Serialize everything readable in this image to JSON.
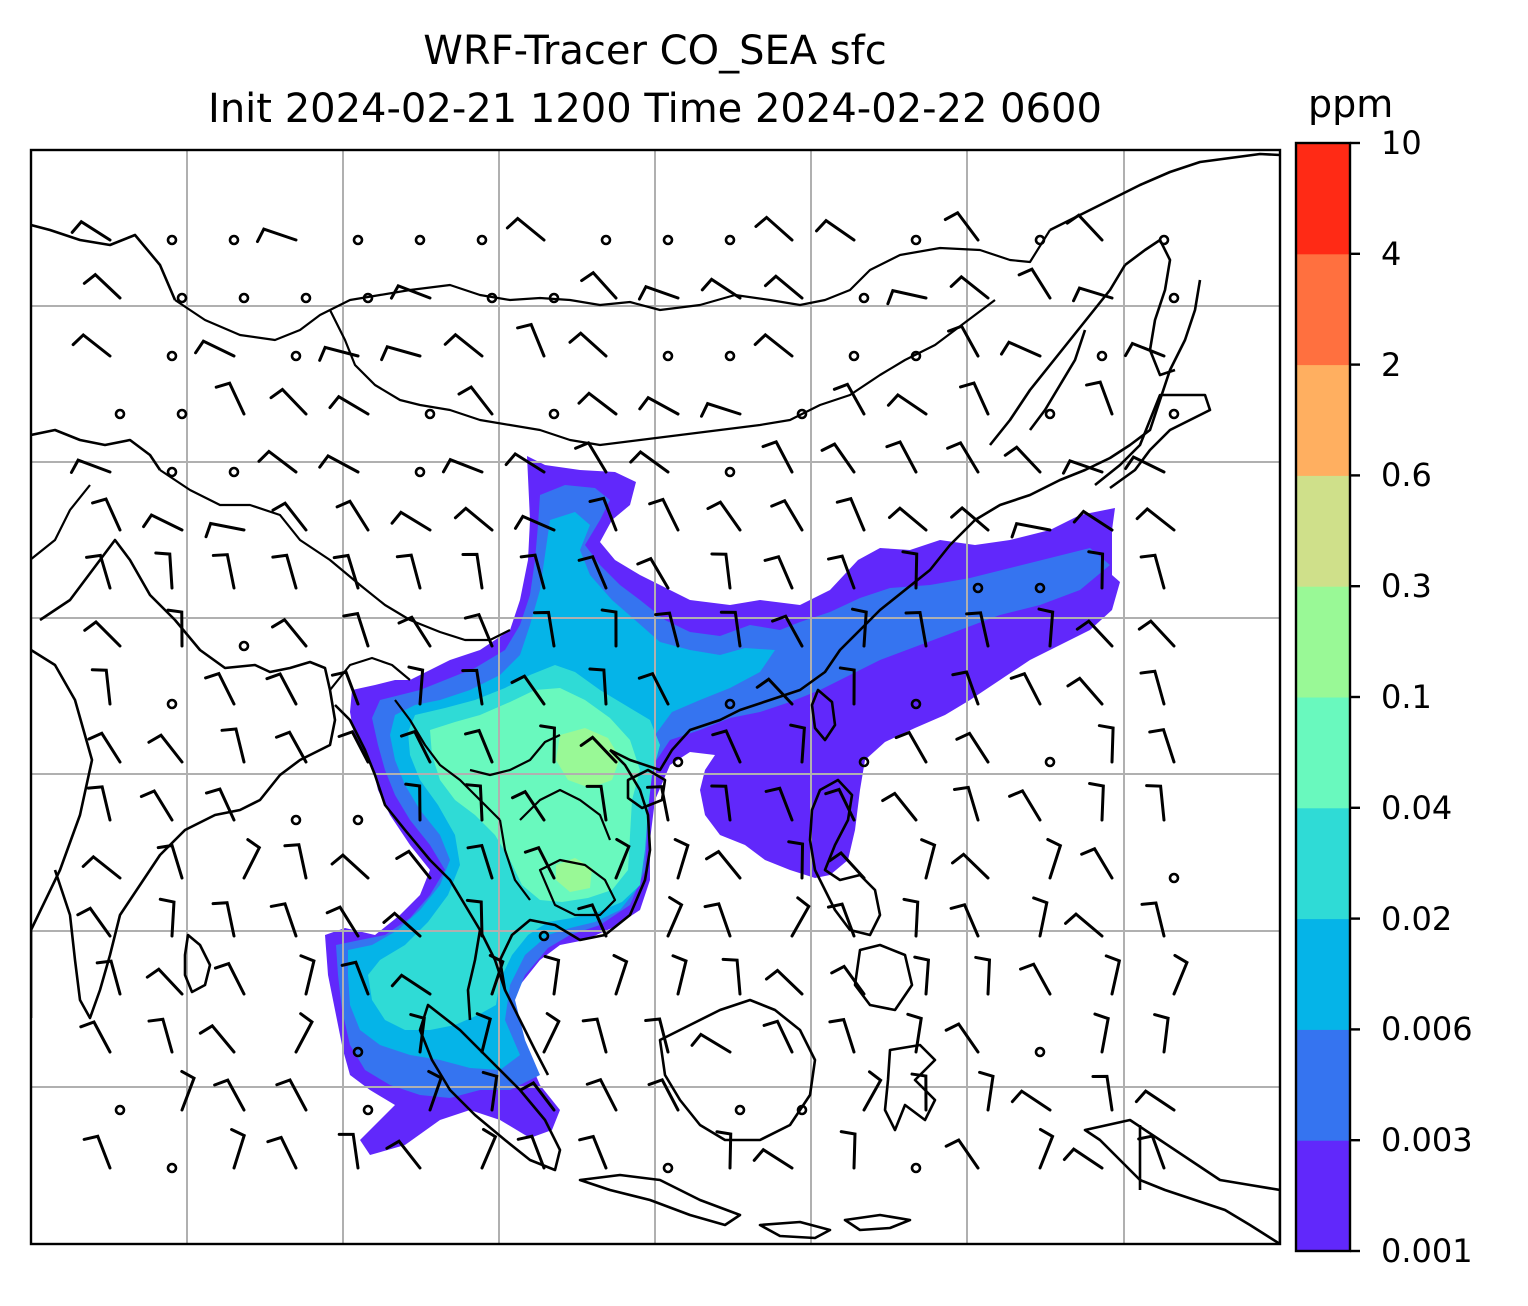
{
  "title": {
    "line1": "WRF-Tracer CO_SEA sfc",
    "line2": "Init 2024-02-21 1200 Time 2024-02-22 0600"
  },
  "colorbar": {
    "units": "ppm",
    "levels": [
      "0.001",
      "0.003",
      "0.006",
      "0.02",
      "0.04",
      "0.1",
      "0.3",
      "0.6",
      "2",
      "4",
      "10"
    ],
    "colors": [
      "#6128fb",
      "#3574f0",
      "#05b4e8",
      "#2fdbd6",
      "#69f9be",
      "#99f996",
      "#cfe08a",
      "#ffaf60",
      "#ff703f",
      "#ff2a15"
    ]
  },
  "map": {
    "field": "surface CO_SEA tracer concentration",
    "gridlines": true,
    "wind_barbs": true,
    "coastlines": true,
    "country_borders": true
  }
}
